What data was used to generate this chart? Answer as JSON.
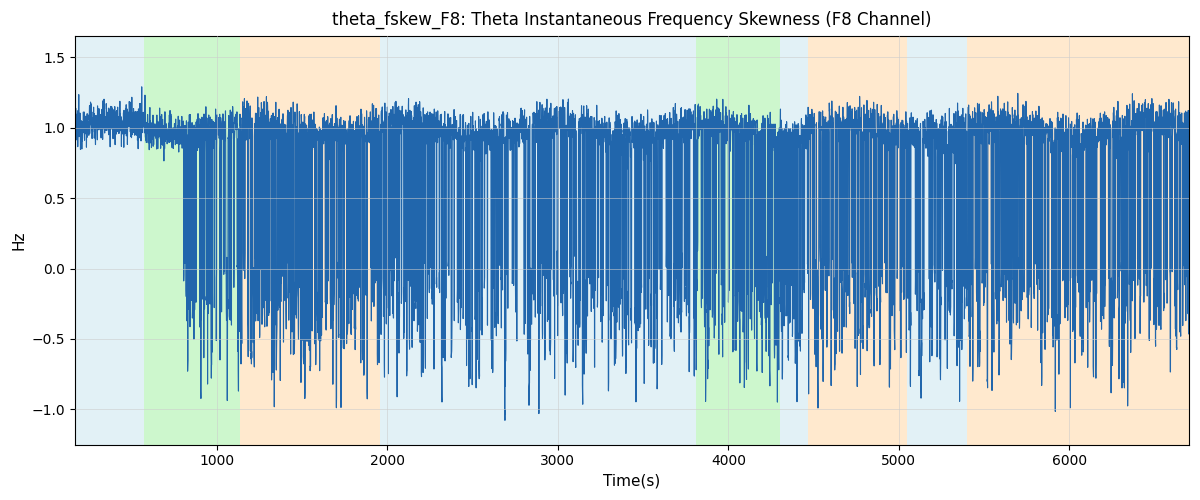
{
  "title": "theta_fskew_F8: Theta Instantaneous Frequency Skewness (F8 Channel)",
  "xlabel": "Time(s)",
  "ylabel": "Hz",
  "ylim": [
    -1.25,
    1.65
  ],
  "xlim": [
    170,
    6700
  ],
  "bg_regions": [
    {
      "xmin": 170,
      "xmax": 575,
      "color": "#add8e6",
      "alpha": 0.35
    },
    {
      "xmin": 575,
      "xmax": 1140,
      "color": "#90ee90",
      "alpha": 0.45
    },
    {
      "xmin": 1140,
      "xmax": 1960,
      "color": "#ffd59e",
      "alpha": 0.5
    },
    {
      "xmin": 1960,
      "xmax": 2640,
      "color": "#add8e6",
      "alpha": 0.35
    },
    {
      "xmin": 2640,
      "xmax": 3780,
      "color": "#add8e6",
      "alpha": 0.35
    },
    {
      "xmin": 3780,
      "xmax": 3810,
      "color": "#add8e6",
      "alpha": 0.35
    },
    {
      "xmin": 3810,
      "xmax": 4300,
      "color": "#90ee90",
      "alpha": 0.45
    },
    {
      "xmin": 4300,
      "xmax": 4470,
      "color": "#add8e6",
      "alpha": 0.35
    },
    {
      "xmin": 4470,
      "xmax": 5050,
      "color": "#ffd59e",
      "alpha": 0.5
    },
    {
      "xmin": 5050,
      "xmax": 5400,
      "color": "#add8e6",
      "alpha": 0.35
    },
    {
      "xmin": 5400,
      "xmax": 6100,
      "color": "#ffd59e",
      "alpha": 0.5
    },
    {
      "xmin": 6100,
      "xmax": 6700,
      "color": "#ffd59e",
      "alpha": 0.5
    }
  ],
  "line_color": "#2166ac",
  "line_width": 0.8,
  "seed": 12345,
  "x_start": 170,
  "x_end": 6700,
  "n_points": 6530
}
